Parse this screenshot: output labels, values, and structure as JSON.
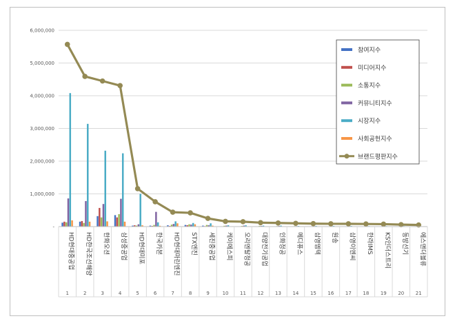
{
  "chart_data": {
    "type": "bar",
    "title": "",
    "xlabel": "",
    "ylabel": "",
    "ylim": [
      0,
      6000000
    ],
    "yticks": [
      0,
      1000000,
      2000000,
      3000000,
      4000000,
      5000000,
      6000000
    ],
    "ytick_labels": [
      "-",
      "1,000,000",
      "2,000,000",
      "3,000,000",
      "4,000,000",
      "5,000,000",
      "6,000,000"
    ],
    "grid": true,
    "legend_position": "right",
    "categories": [
      "HD현대중공업",
      "HD한국조선해양",
      "한화오션",
      "삼성중공업",
      "HD현대미포",
      "한국카본",
      "HD현대마린엔진",
      "STX엔진",
      "세진중공업",
      "케이에스피",
      "오리엔탈정공",
      "대양전기공업",
      "인화정공",
      "메디퓨스",
      "삼영엠텍",
      "원송",
      "삼영이엔씨",
      "한라IMS",
      "KS인더스트리",
      "동방선기",
      "에스앤더블류"
    ],
    "index_labels": [
      "1",
      "2",
      "3",
      "4",
      "5",
      "6",
      "7",
      "8",
      "9",
      "10",
      "11",
      "12",
      "13",
      "14",
      "15",
      "16",
      "17",
      "18",
      "19",
      "20",
      "21"
    ],
    "series": [
      {
        "name": "참여지수",
        "type": "bar",
        "color": "#4472c4",
        "values": [
          120000,
          150000,
          320000,
          350000,
          30000,
          30000,
          40000,
          50000,
          30000,
          10000,
          10000,
          10000,
          10000,
          8000,
          8000,
          6000,
          6000,
          6000,
          5000,
          5000,
          4000
        ]
      },
      {
        "name": "미디어지수",
        "type": "bar",
        "color": "#c0504d",
        "values": [
          150000,
          170000,
          570000,
          280000,
          40000,
          20000,
          20000,
          40000,
          15000,
          10000,
          10000,
          8000,
          8000,
          6000,
          6000,
          6000,
          5000,
          5000,
          5000,
          4000,
          4000
        ]
      },
      {
        "name": "소통지수",
        "type": "bar",
        "color": "#9bbb59",
        "values": [
          130000,
          110000,
          280000,
          380000,
          30000,
          50000,
          60000,
          70000,
          50000,
          25000,
          20000,
          20000,
          15000,
          15000,
          12000,
          10000,
          10000,
          10000,
          8000,
          8000,
          6000
        ]
      },
      {
        "name": "커뮤니티지수",
        "type": "bar",
        "color": "#8064a2",
        "values": [
          860000,
          780000,
          690000,
          850000,
          70000,
          450000,
          80000,
          60000,
          40000,
          30000,
          30000,
          20000,
          20000,
          15000,
          15000,
          15000,
          15000,
          12000,
          12000,
          10000,
          10000
        ]
      },
      {
        "name": "시장지수",
        "type": "bar",
        "color": "#4bacc6",
        "values": [
          4080000,
          3140000,
          2320000,
          2240000,
          1000000,
          130000,
          160000,
          110000,
          100000,
          40000,
          40000,
          30000,
          30000,
          20000,
          20000,
          20000,
          20000,
          15000,
          15000,
          15000,
          10000
        ]
      },
      {
        "name": "사회공헌지수",
        "type": "bar",
        "color": "#f79646",
        "values": [
          190000,
          150000,
          160000,
          150000,
          40000,
          25000,
          100000,
          70000,
          30000,
          10000,
          10000,
          8000,
          8000,
          6000,
          6000,
          6000,
          5000,
          5000,
          5000,
          4000,
          4000
        ]
      },
      {
        "name": "브랜드평판지수",
        "type": "line",
        "color": "#948a54",
        "values": [
          5570000,
          4590000,
          4450000,
          4310000,
          1160000,
          760000,
          440000,
          420000,
          250000,
          160000,
          150000,
          120000,
          110000,
          100000,
          90000,
          85000,
          85000,
          80000,
          75000,
          60000,
          50000
        ]
      }
    ]
  }
}
